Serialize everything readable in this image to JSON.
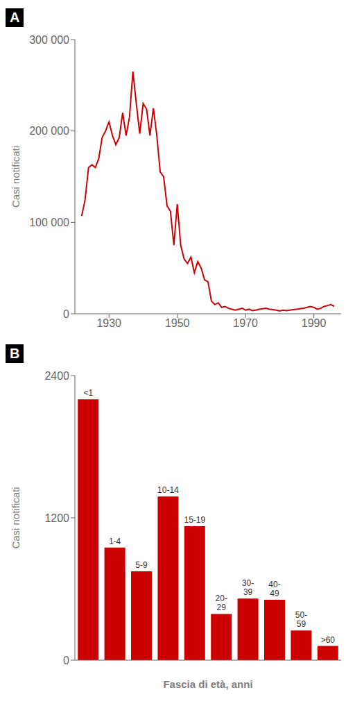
{
  "chart_data": [
    {
      "type": "line",
      "title": "A",
      "ylabel": "Casi notificati",
      "color": "#cc0000",
      "x": [
        1922,
        1923,
        1924,
        1925,
        1926,
        1927,
        1928,
        1929,
        1930,
        1931,
        1932,
        1933,
        1934,
        1935,
        1936,
        1937,
        1938,
        1939,
        1940,
        1941,
        1942,
        1943,
        1944,
        1945,
        1946,
        1947,
        1948,
        1949,
        1950,
        1951,
        1952,
        1953,
        1954,
        1955,
        1956,
        1957,
        1958,
        1959,
        1960,
        1961,
        1962,
        1963,
        1964,
        1965,
        1966,
        1967,
        1968,
        1969,
        1970,
        1971,
        1972,
        1973,
        1974,
        1975,
        1976,
        1977,
        1978,
        1979,
        1980,
        1981,
        1982,
        1983,
        1984,
        1985,
        1986,
        1987,
        1988,
        1989,
        1990,
        1991,
        1992,
        1993,
        1994,
        1995,
        1996
      ],
      "values": [
        107000,
        125000,
        160000,
        163000,
        160000,
        170000,
        193000,
        200000,
        210000,
        195000,
        185000,
        193000,
        220000,
        195000,
        215000,
        265000,
        230000,
        197000,
        230000,
        224000,
        195000,
        225000,
        195000,
        155000,
        150000,
        118000,
        112000,
        75000,
        120000,
        75000,
        60000,
        55000,
        62000,
        45000,
        57000,
        50000,
        37000,
        35000,
        14000,
        10000,
        12000,
        7000,
        8000,
        6000,
        5000,
        4000,
        5000,
        6000,
        4000,
        5000,
        3500,
        4000,
        5000,
        5500,
        6000,
        5000,
        4500,
        4000,
        3000,
        4000,
        3500,
        4000,
        4500,
        5000,
        5500,
        6000,
        7000,
        8000,
        7000,
        5000,
        6000,
        8000,
        9000,
        10000,
        8000
      ],
      "xlim": [
        1920,
        1998
      ],
      "xticks": [
        1930,
        1950,
        1970,
        1990
      ],
      "ylim": [
        0,
        300000
      ],
      "yticks": [
        0,
        {
          "value": 100000,
          "label": "100 000"
        },
        {
          "value": 200000,
          "label": "200 000"
        },
        {
          "value": 300000,
          "label": "300 000"
        }
      ]
    },
    {
      "type": "bar",
      "title": "B",
      "ylabel": "Casi notificati",
      "xlabel": "Fascia di età, anni",
      "color": "#cc0000",
      "categories": [
        "<1",
        "1-4",
        "5-9",
        "10-14",
        "15-19",
        "20-\n29",
        "30-\n39",
        "40-\n49",
        "50-\n59",
        ">60"
      ],
      "values": [
        2200,
        950,
        750,
        1380,
        1130,
        390,
        520,
        510,
        250,
        120
      ],
      "ylim": [
        0,
        2400
      ],
      "yticks": [
        0,
        1200,
        2400
      ],
      "tick_labels": "y"
    }
  ]
}
